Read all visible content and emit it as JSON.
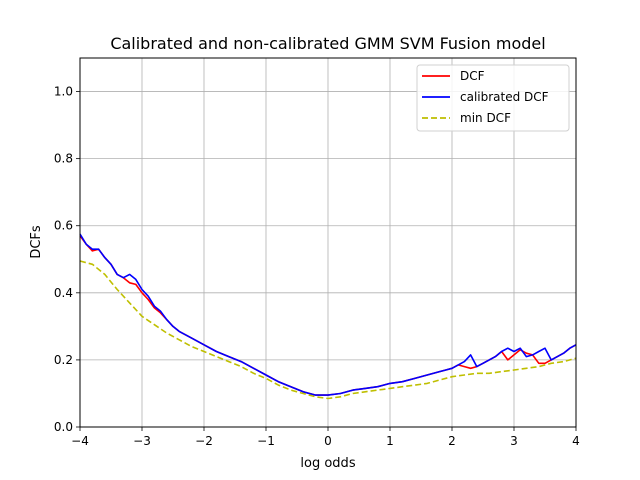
{
  "chart_data": {
    "type": "line",
    "title": "Calibrated and non-calibrated GMM SVM Fusion model",
    "xlabel": "log odds",
    "ylabel": "DCFs",
    "xlim": [
      -4,
      4
    ],
    "ylim": [
      0,
      1.1
    ],
    "xticks": [
      -4,
      -3,
      -2,
      -1,
      0,
      1,
      2,
      3,
      4
    ],
    "xtick_labels": [
      "−4",
      "−3",
      "−2",
      "−1",
      "0",
      "1",
      "2",
      "3",
      "4"
    ],
    "yticks": [
      0,
      0.2,
      0.4,
      0.6,
      0.8,
      1.0
    ],
    "ytick_labels": [
      "0.0",
      "0.2",
      "0.4",
      "0.6",
      "0.8",
      "1.0"
    ],
    "grid": true,
    "legend_position": "top-right",
    "series": [
      {
        "name": "DCF",
        "color": "#ff0000",
        "style": "solid",
        "x": [
          -4,
          -3.9,
          -3.8,
          -3.7,
          -3.6,
          -3.5,
          -3.4,
          -3.3,
          -3.2,
          -3.1,
          -3.0,
          -2.9,
          -2.8,
          -2.7,
          -2.6,
          -2.5,
          -2.4,
          -2.2,
          -2.0,
          -1.8,
          -1.6,
          -1.4,
          -1.2,
          -1.0,
          -0.8,
          -0.6,
          -0.4,
          -0.2,
          0.0,
          0.2,
          0.4,
          0.6,
          0.8,
          1.0,
          1.2,
          1.4,
          1.6,
          1.8,
          1.9,
          2.0,
          2.1,
          2.2,
          2.3,
          2.4,
          2.5,
          2.6,
          2.7,
          2.8,
          2.9,
          3.0,
          3.1,
          3.2,
          3.3,
          3.4,
          3.5,
          3.6,
          3.7,
          3.8,
          3.9,
          4.0
        ],
        "y": [
          0.57,
          0.545,
          0.525,
          0.53,
          0.505,
          0.485,
          0.455,
          0.445,
          0.43,
          0.425,
          0.4,
          0.38,
          0.355,
          0.34,
          0.32,
          0.3,
          0.285,
          0.265,
          0.245,
          0.225,
          0.21,
          0.195,
          0.175,
          0.155,
          0.135,
          0.12,
          0.105,
          0.095,
          0.095,
          0.1,
          0.11,
          0.115,
          0.12,
          0.13,
          0.135,
          0.145,
          0.155,
          0.165,
          0.17,
          0.175,
          0.185,
          0.18,
          0.175,
          0.18,
          0.19,
          0.2,
          0.21,
          0.225,
          0.2,
          0.215,
          0.23,
          0.22,
          0.215,
          0.19,
          0.19,
          0.2,
          0.21,
          0.22,
          0.235,
          0.245
        ]
      },
      {
        "name": "calibrated DCF",
        "color": "#0000ff",
        "style": "solid",
        "x": [
          -4,
          -3.9,
          -3.8,
          -3.7,
          -3.6,
          -3.5,
          -3.4,
          -3.3,
          -3.2,
          -3.1,
          -3.0,
          -2.9,
          -2.8,
          -2.7,
          -2.6,
          -2.5,
          -2.4,
          -2.2,
          -2.0,
          -1.8,
          -1.6,
          -1.4,
          -1.2,
          -1.0,
          -0.8,
          -0.6,
          -0.4,
          -0.2,
          0.0,
          0.2,
          0.4,
          0.6,
          0.8,
          1.0,
          1.2,
          1.4,
          1.6,
          1.8,
          1.9,
          2.0,
          2.1,
          2.2,
          2.3,
          2.4,
          2.5,
          2.6,
          2.7,
          2.8,
          2.9,
          3.0,
          3.1,
          3.2,
          3.3,
          3.4,
          3.5,
          3.6,
          3.7,
          3.8,
          3.9,
          4.0
        ],
        "y": [
          0.575,
          0.545,
          0.53,
          0.53,
          0.505,
          0.485,
          0.455,
          0.445,
          0.455,
          0.44,
          0.41,
          0.39,
          0.36,
          0.345,
          0.32,
          0.3,
          0.285,
          0.265,
          0.245,
          0.225,
          0.21,
          0.195,
          0.175,
          0.155,
          0.135,
          0.12,
          0.105,
          0.095,
          0.095,
          0.1,
          0.11,
          0.115,
          0.12,
          0.13,
          0.135,
          0.145,
          0.155,
          0.165,
          0.17,
          0.175,
          0.185,
          0.195,
          0.215,
          0.18,
          0.19,
          0.2,
          0.21,
          0.225,
          0.235,
          0.225,
          0.235,
          0.21,
          0.215,
          0.225,
          0.235,
          0.2,
          0.21,
          0.22,
          0.235,
          0.245
        ]
      },
      {
        "name": "min DCF",
        "color": "#bfbf00",
        "style": "dashed",
        "x": [
          -4,
          -3.8,
          -3.6,
          -3.4,
          -3.2,
          -3.0,
          -2.8,
          -2.6,
          -2.4,
          -2.2,
          -2.0,
          -1.8,
          -1.6,
          -1.4,
          -1.2,
          -1.0,
          -0.8,
          -0.6,
          -0.4,
          -0.2,
          0.0,
          0.2,
          0.4,
          0.6,
          0.8,
          1.0,
          1.2,
          1.4,
          1.6,
          1.8,
          2.0,
          2.2,
          2.4,
          2.6,
          2.8,
          3.0,
          3.2,
          3.4,
          3.6,
          3.8,
          4.0
        ],
        "y": [
          0.495,
          0.485,
          0.455,
          0.41,
          0.37,
          0.33,
          0.305,
          0.28,
          0.26,
          0.24,
          0.225,
          0.21,
          0.195,
          0.18,
          0.16,
          0.145,
          0.125,
          0.11,
          0.1,
          0.09,
          0.085,
          0.09,
          0.1,
          0.105,
          0.11,
          0.115,
          0.12,
          0.125,
          0.13,
          0.14,
          0.15,
          0.155,
          0.16,
          0.16,
          0.165,
          0.17,
          0.175,
          0.18,
          0.19,
          0.195,
          0.205
        ]
      }
    ]
  }
}
